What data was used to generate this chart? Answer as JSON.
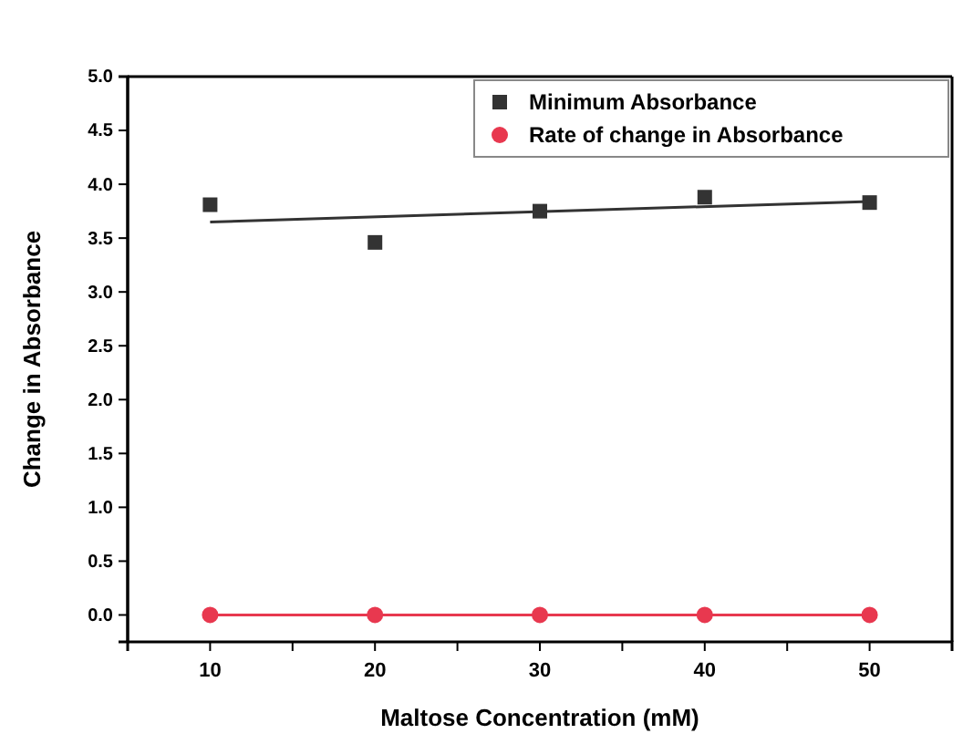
{
  "chart_data": {
    "type": "scatter",
    "xlabel": "Maltose Concentration (mM)",
    "ylabel": "Change in Absorbance",
    "x": [
      10,
      20,
      30,
      40,
      50
    ],
    "xlim": [
      5,
      55
    ],
    "xticks": [
      10,
      {
        "value": 15,
        "label": null
      },
      20,
      {
        "value": 25,
        "label": null
      },
      30,
      {
        "value": 35,
        "label": null
      },
      40,
      {
        "value": 45,
        "label": null
      },
      50
    ],
    "ylim": [
      -0.25,
      5
    ],
    "yticks": [
      {
        "value": 0,
        "label": "0.0"
      },
      0.5,
      {
        "value": 1,
        "label": "1.0"
      },
      1.5,
      {
        "value": 2,
        "label": "2.0"
      },
      2.5,
      {
        "value": 3,
        "label": "3.0"
      },
      3.5,
      {
        "value": 4,
        "label": "4.0"
      },
      4.5,
      {
        "value": 5,
        "label": "5.0"
      }
    ],
    "series": [
      {
        "name": "Minimum Absorbance",
        "type": "scatter",
        "marker": "square",
        "color": "#333333",
        "values": [
          3.81,
          3.46,
          3.75,
          3.88,
          3.83
        ]
      },
      {
        "name": "Rate of change in Absorbance",
        "type": "line",
        "marker": "circle",
        "color": "#e8384f",
        "values": [
          0,
          0,
          0,
          0,
          0
        ]
      },
      {
        "type": "line",
        "marker": "none",
        "color": "#333333",
        "x": [
          10,
          50
        ],
        "values": [
          3.65,
          3.84
        ]
      }
    ],
    "legend": "top right",
    "grid": false
  }
}
